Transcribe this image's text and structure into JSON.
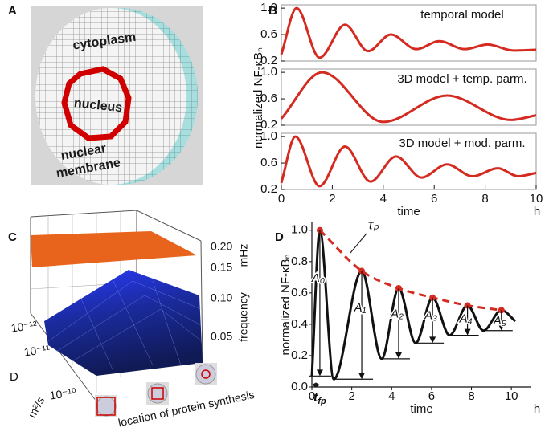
{
  "panel_labels": [
    "A",
    "B",
    "C",
    "D"
  ],
  "cell_diagram": {
    "labels": [
      "cytoplasm",
      "nucleus",
      "nuclear",
      "membrane"
    ]
  },
  "surface_plot": {
    "z_ticks": [
      "0.20",
      "0.15",
      "0.10",
      "0.05"
    ],
    "z_unit": "mHz",
    "z_label": "frequency",
    "d_ticks": [
      "10⁻¹²",
      "10⁻¹¹",
      "10⁻¹⁰"
    ],
    "d_label": "D",
    "d_unit": "m²/s",
    "location_label": "location of protein synthesis"
  },
  "chart_data": [
    {
      "type": "line",
      "title": "temporal model",
      "color": "#d42a20",
      "x": [
        0,
        0.6,
        1.5,
        2.5,
        3.4,
        4.3,
        5.3,
        6.2,
        7.2,
        8.1,
        9.1,
        10
      ],
      "values": [
        0.3,
        1.0,
        0.25,
        0.75,
        0.35,
        0.6,
        0.38,
        0.5,
        0.38,
        0.45,
        0.36,
        0.37
      ],
      "xlim": [
        0,
        10
      ],
      "ylim": [
        0.2,
        1.05
      ],
      "yticks": [
        {
          "value": 1,
          "label": "1.0"
        },
        0.6,
        0.2
      ]
    },
    {
      "type": "line",
      "title": "3D model + temp. parm.",
      "color": "#d42a20",
      "ylabel": "normalized NF-κBₙ",
      "x": [
        0,
        1.6,
        4.0,
        6.5,
        9.0,
        10
      ],
      "values": [
        0.3,
        1.0,
        0.25,
        0.65,
        0.28,
        0.35
      ],
      "xlim": [
        0,
        10
      ],
      "ylim": [
        0.2,
        1.05
      ],
      "yticks": [
        {
          "value": 1,
          "label": "1.0"
        },
        0.6,
        0.2
      ]
    },
    {
      "type": "line",
      "title": "3D model + mod. parm.",
      "color": "#d42a20",
      "x": [
        0,
        0.55,
        1.5,
        2.5,
        3.5,
        4.5,
        5.5,
        6.5,
        7.5,
        8.5,
        9.3,
        10
      ],
      "values": [
        0.3,
        1.0,
        0.25,
        0.85,
        0.32,
        0.7,
        0.38,
        0.58,
        0.4,
        0.52,
        0.4,
        0.45
      ],
      "xlim": [
        0,
        10
      ],
      "ylim": [
        0.2,
        1.05
      ],
      "yticks": [
        {
          "value": 1,
          "label": "1.0"
        },
        0.6,
        0.2
      ],
      "xticks": [
        0,
        2,
        4,
        6,
        8,
        10
      ],
      "xlabel": "time",
      "xunit": "h"
    },
    {
      "type": "line",
      "ylabel": "normalized NF-κBₙ",
      "xlabel": "time",
      "xunit": "h",
      "xlim": [
        0,
        11
      ],
      "ylim": [
        0,
        1.05
      ],
      "xticks": [
        0,
        2,
        4,
        6,
        8,
        10
      ],
      "yticks": [
        {
          "value": 0,
          "label": "0.0"
        },
        0.2,
        0.4,
        0.6,
        0.8,
        {
          "value": 1,
          "label": "1.0"
        }
      ],
      "series": [
        {
          "color": "#111111",
          "x": [
            0,
            0.4,
            1.1,
            2.5,
            3.5,
            4.35,
            5.2,
            6.05,
            6.9,
            7.8,
            8.6,
            9.5,
            10.2
          ],
          "values": [
            0.07,
            1.0,
            0.05,
            0.74,
            0.18,
            0.63,
            0.28,
            0.57,
            0.33,
            0.52,
            0.36,
            0.49,
            0.42
          ]
        },
        {
          "color": "#d42a20",
          "dashed": true,
          "markers": true,
          "x": [
            0.4,
            2.5,
            4.35,
            6.05,
            7.8,
            9.5
          ],
          "values": [
            1.0,
            0.74,
            0.63,
            0.57,
            0.52,
            0.49
          ]
        }
      ],
      "envelope_label": "τₚ",
      "amplitude_labels": [
        "A₀",
        "A₁",
        "A₂",
        "A₃",
        "A₄",
        "A₅"
      ],
      "period_label": {
        "base": "t",
        "sub": "fp"
      }
    }
  ]
}
